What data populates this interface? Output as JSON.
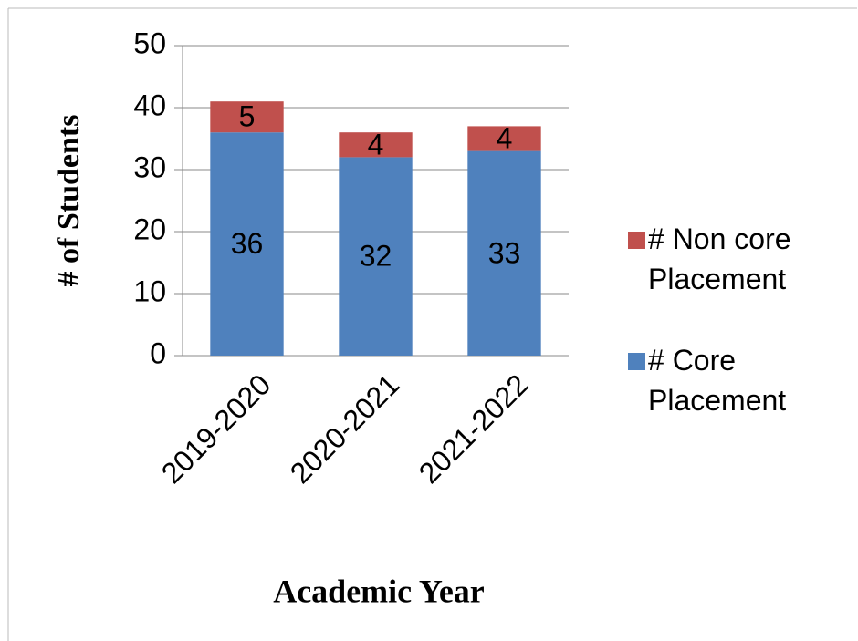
{
  "chart_data": {
    "type": "stacked_bar",
    "x_label": "Academic Year",
    "y_label": "# of Students",
    "categories": [
      "2019-2020",
      "2020-2021",
      "2021-2022"
    ],
    "series": [
      {
        "name": "# Core Placement",
        "color": "#4f81bd",
        "values": [
          36,
          32,
          33
        ]
      },
      {
        "name": "# Non core Placement",
        "color": "#c0504d",
        "values": [
          5,
          4,
          4
        ]
      }
    ],
    "ylim": [
      0,
      50
    ],
    "yticks": [
      0,
      10,
      20,
      30,
      40,
      50
    ],
    "grid": true,
    "legend": "right"
  }
}
